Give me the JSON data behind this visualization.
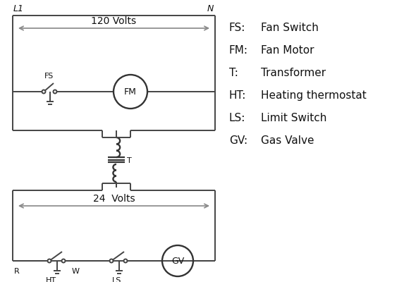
{
  "background_color": "#ffffff",
  "line_color": "#333333",
  "wire_color": "#444444",
  "arrow_color": "#888888",
  "text_color": "#111111",
  "legend_items": [
    [
      "FS:",
      "Fan Switch"
    ],
    [
      "FM:",
      "Fan Motor"
    ],
    [
      "T:",
      "Transformer"
    ],
    [
      "HT:",
      "Heating thermostat"
    ],
    [
      "LS:",
      "Limit Switch"
    ],
    [
      "GV:",
      "Gas Valve"
    ]
  ],
  "L1_label": "L1",
  "N_label": "N",
  "volts120_label": "120 Volts",
  "volts24_label": "24  Volts",
  "FS_label": "FS",
  "FM_label": "FM",
  "T_label": "T",
  "R_label": "R",
  "W_label": "W",
  "HT_label": "HT",
  "LS_label": "LS",
  "GV_label": "GV",
  "figsize": [
    5.9,
    4.0
  ],
  "dpi": 100
}
